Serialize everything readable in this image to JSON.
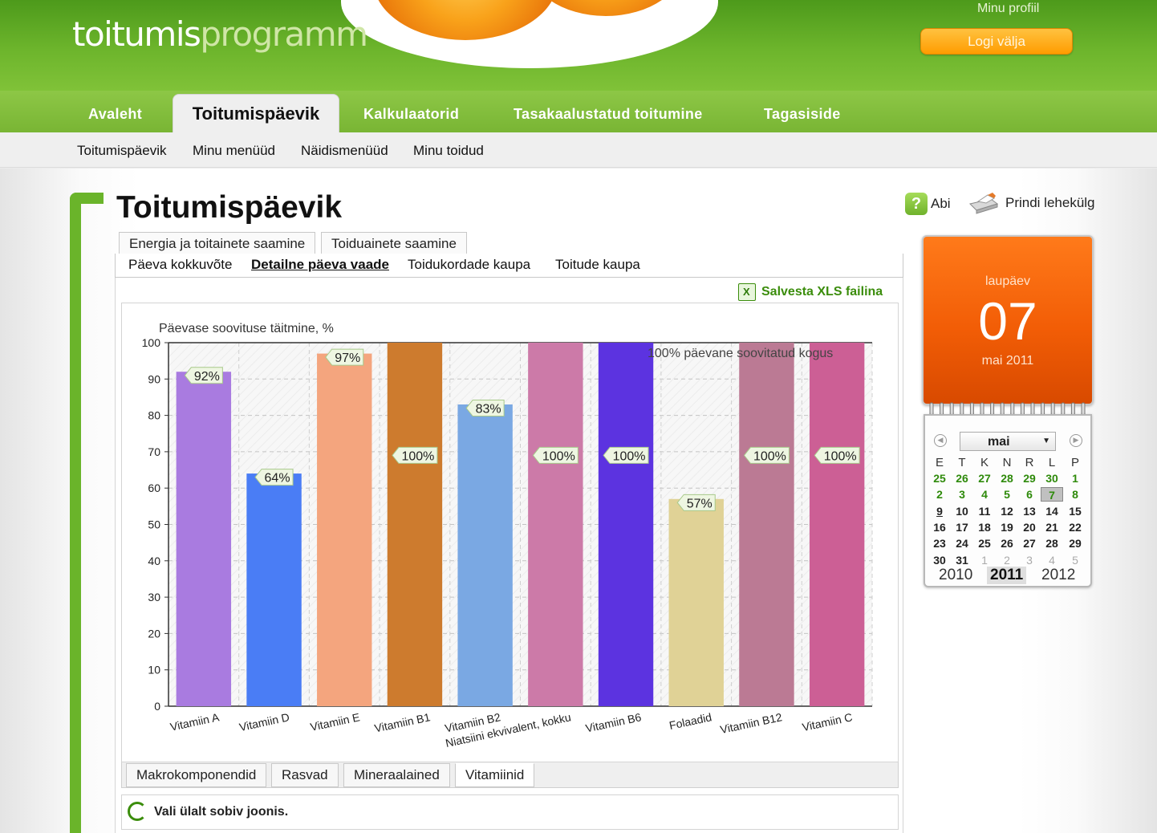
{
  "header": {
    "logo_part1": "toitumis",
    "logo_part2": "programm",
    "profile_link": "Minu profiil",
    "logout_label": "Logi välja"
  },
  "main_nav": {
    "items": [
      "Avaleht",
      "Toitumispäevik",
      "Kalkulaatorid",
      "Tasakaalustatud toitumine",
      "Tagasiside"
    ],
    "active": "Toitumispäevik"
  },
  "sub_nav": {
    "items": [
      "Toitumispäevik",
      "Minu menüüd",
      "Näidismenüüd",
      "Minu toidud"
    ]
  },
  "page": {
    "title": "Toitumispäevik",
    "help_label": "Abi",
    "print_label": "Prindi lehekülg",
    "tabs": [
      "Energia ja toitainete saamine",
      "Toiduainete saamine"
    ],
    "subtabs": [
      "Päeva kokkuvõte",
      "Detailne päeva vaade",
      "Toidukordade kaupa",
      "Toitude kaupa"
    ],
    "active_subtab": "Detailne päeva vaade",
    "xls_label": "Salvesta XLS failina",
    "bottom_tabs": [
      "Makrokomponendid",
      "Rasvad",
      "Mineraalained",
      "Vitamiinid"
    ],
    "active_bottom_tab": "Vitamiinid",
    "hint": "Vali ülalt sobiv joonis."
  },
  "chart_data": {
    "type": "bar",
    "title": "Päevase soovituse täitmine, %",
    "annotation": "100% päevane soovitatud kogus",
    "categories": [
      "Vitamiin A",
      "Vitamiin D",
      "Vitamiin E",
      "Vitamiin B1",
      "Vitamiin B2",
      "Niatsiini ekvivalent, kokku",
      "Vitamiin B6",
      "Folaadid",
      "Vitamiin B12",
      "Vitamiin C"
    ],
    "values": [
      92,
      64,
      97,
      100,
      83,
      100,
      100,
      57,
      100,
      100
    ],
    "labels": [
      "92%",
      "64%",
      "97%",
      "100%",
      "83%",
      "100%",
      "100%",
      "57%",
      "100%",
      "100%"
    ],
    "colors": [
      "#a97be0",
      "#4a7df5",
      "#f4a57e",
      "#cd7b2e",
      "#7aa8e3",
      "#cc7aa8",
      "#5c33e0",
      "#e0d296",
      "#bb7a94",
      "#cc5f95"
    ],
    "ylim": [
      0,
      100
    ],
    "yticks": [
      0,
      10,
      20,
      30,
      40,
      50,
      60,
      70,
      80,
      90,
      100
    ],
    "grid": true
  },
  "calendar": {
    "weekday": "laupäev",
    "day": "07",
    "month_year": "mai 2011",
    "month_select": "mai",
    "headers": [
      "E",
      "T",
      "K",
      "N",
      "R",
      "L",
      "P"
    ],
    "weeks": [
      [
        "25",
        "26",
        "27",
        "28",
        "29",
        "30",
        "1"
      ],
      [
        "2",
        "3",
        "4",
        "5",
        "6",
        "7",
        "8"
      ],
      [
        "9",
        "10",
        "11",
        "12",
        "13",
        "14",
        "15"
      ],
      [
        "16",
        "17",
        "18",
        "19",
        "20",
        "21",
        "22"
      ],
      [
        "23",
        "24",
        "25",
        "26",
        "27",
        "28",
        "29"
      ],
      [
        "30",
        "31",
        "1",
        "2",
        "3",
        "4",
        "5"
      ]
    ],
    "years": [
      "2010",
      "2011",
      "2012"
    ],
    "current_year": "2011"
  }
}
